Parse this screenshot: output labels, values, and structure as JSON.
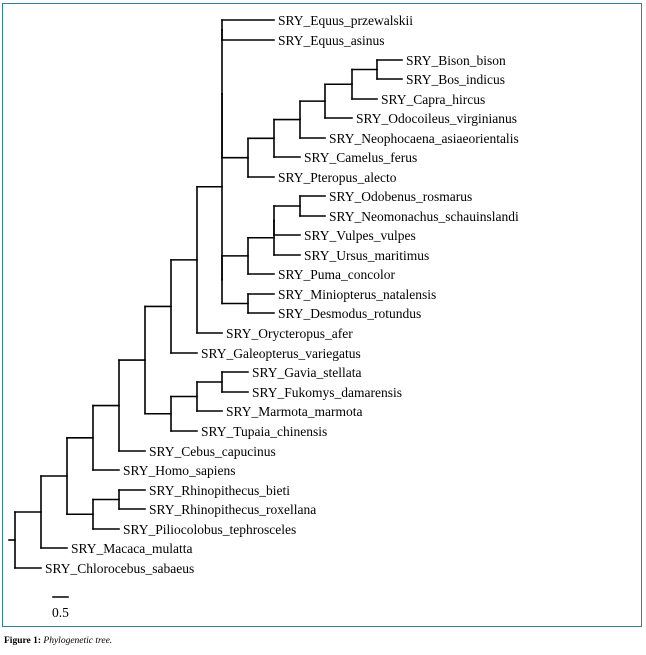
{
  "figure": {
    "caption_label": "Figure 1:",
    "caption_text": "Phylogenetic tree."
  },
  "tree": {
    "scale_bar_label": "0.5",
    "leaves": [
      "SRY_Equus_przewalskii",
      "SRY_Equus_asinus",
      "SRY_Bison_bison",
      "SRY_Bos_indicus",
      "SRY_Capra_hircus",
      "SRY_Odocoileus_virginianus",
      "SRY_Neophocaena_asiaeorientalis",
      "SRY_Camelus_ferus",
      "SRY_Pteropus_alecto",
      "SRY_Odobenus_rosmarus",
      "SRY_Neomonachus_schauinslandi",
      "SRY_Vulpes_vulpes",
      "SRY_Ursus_maritimus",
      "SRY_Puma_concolor",
      "SRY_Miniopterus_natalensis",
      "SRY_Desmodus_rotundus",
      "SRY_Orycteropus_afer",
      "SRY_Galeopterus_variegatus",
      "SRY_Gavia_stellata",
      "SRY_Fukomys_damarensis",
      "SRY_Marmota_marmota",
      "SRY_Tupaia_chinensis",
      "SRY_Cebus_capucinus",
      "SRY_Homo_sapiens",
      "SRY_Rhinopithecus_bieti",
      "SRY_Rhinopithecus_roxellana",
      "SRY_Piliocolobus_tephrosceles",
      "SRY_Macaca_mulatta",
      "SRY_Chlorocebus_sabaeus"
    ]
  }
}
